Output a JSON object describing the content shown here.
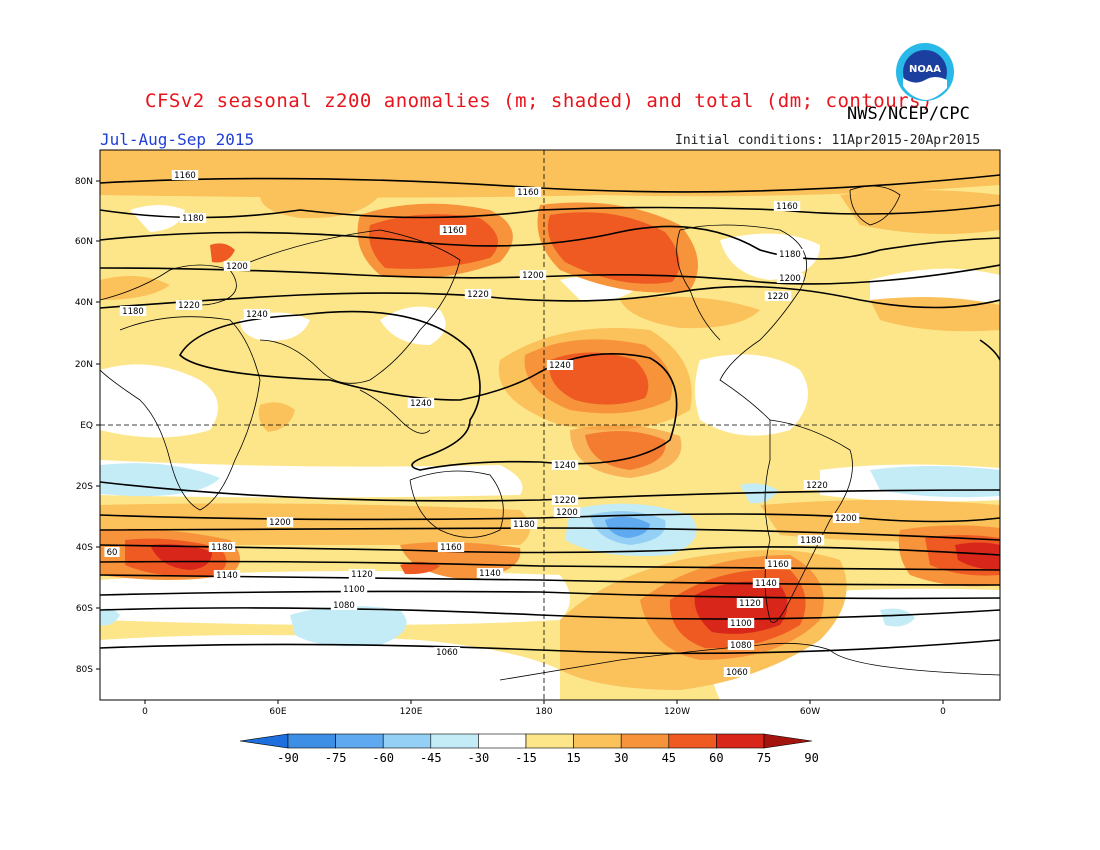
{
  "header": {
    "title": "CFSv2 seasonal z200 anomalies (m; shaded) and total (dm; contours)",
    "agency": "NWS/NCEP/CPC",
    "season": "Jul-Aug-Sep 2015",
    "initial_conditions": "Initial conditions: 11Apr2015-20Apr2015"
  },
  "logo": {
    "text": "NOAA",
    "icon": "noaa-logo-icon"
  },
  "map": {
    "lat_labels": [
      "80N",
      "60N",
      "40N",
      "20N",
      "EQ",
      "20S",
      "40S",
      "60S",
      "80S"
    ],
    "lon_labels": [
      "0",
      "60E",
      "120E",
      "180",
      "120W",
      "60W",
      "0"
    ],
    "colors": {
      "neg90": "#1c6fdc",
      "neg75": "#3d8fe6",
      "neg60": "#5ea9ef",
      "neg45": "#94cff5",
      "neg30": "#c3ecf7",
      "neutral": "#ffffff",
      "pos15": "#fde68a",
      "pos30": "#fbc15a",
      "pos45": "#f7933a",
      "pos60": "#ee5a22",
      "pos75": "#d8271a",
      "pos90": "#a4140f"
    },
    "contour_labels": [
      "1160",
      "1160",
      "1160",
      "1180",
      "1160",
      "1180",
      "1200",
      "1200",
      "1180",
      "1220",
      "1220",
      "1220",
      "1200",
      "1240",
      "1240",
      "1240",
      "1240",
      "1220",
      "1200",
      "1200",
      "1220",
      "1180",
      "1200",
      "1180",
      "1160",
      "1180",
      "60",
      "1140",
      "1140",
      "1120",
      "1160",
      "1100",
      "1080",
      "1140",
      "1120",
      "1100",
      "1080",
      "1060",
      "1060"
    ]
  },
  "colorbar": {
    "labels": [
      "-90",
      "-75",
      "-60",
      "-45",
      "-30",
      "-15",
      "15",
      "30",
      "45",
      "60",
      "75",
      "90"
    ],
    "colors": [
      "#1c6fdc",
      "#3d8fe6",
      "#5ea9ef",
      "#94cff5",
      "#c3ecf7",
      "#ffffff",
      "#fde68a",
      "#fbc15a",
      "#f7933a",
      "#ee5a22",
      "#d8271a",
      "#a4140f"
    ]
  }
}
